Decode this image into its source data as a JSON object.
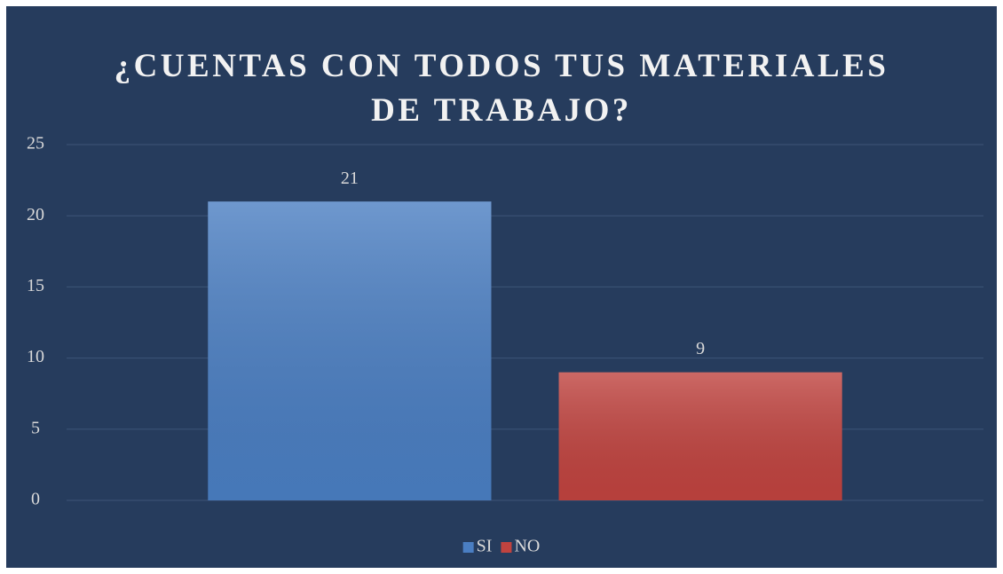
{
  "chart_data": {
    "type": "bar",
    "title": "¿CUENTAS CON TODOS TUS MATERIALES DE TRABAJO?",
    "categories": [
      null
    ],
    "series": [
      {
        "name": "SI",
        "color": "#4a7ec2",
        "values": [
          21
        ]
      },
      {
        "name": "NO",
        "color": "#c0433f",
        "values": [
          9
        ]
      }
    ],
    "ylim": [
      0,
      25
    ],
    "yticks": [
      0,
      5,
      10,
      15,
      20,
      25
    ],
    "grid": true,
    "legend": "bottom"
  }
}
